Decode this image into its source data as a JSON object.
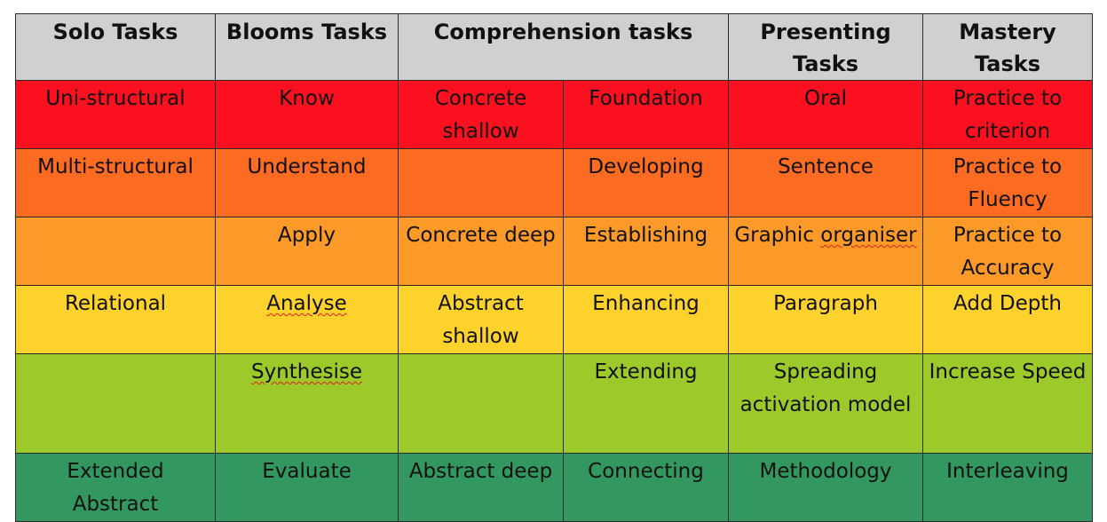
{
  "headers": {
    "solo": "Solo Tasks",
    "blooms": "Blooms Tasks",
    "comprehension": "Comprehension tasks",
    "presenting": "Presenting Tasks",
    "mastery": "Mastery Tasks"
  },
  "row_colors": [
    "#fb1020",
    "#fb6b22",
    "#fb9a28",
    "#fdd22c",
    "#9dc92b",
    "#33985f"
  ],
  "rows": [
    {
      "solo": "Uni-structural",
      "blooms": "Know",
      "comp_a": "Concrete shallow",
      "comp_b": "Foundation",
      "presenting": "Oral",
      "mastery": "Practice to criterion"
    },
    {
      "solo": "Multi-structural",
      "blooms": "Understand",
      "comp_a": "",
      "comp_b": "Developing",
      "presenting": "Sentence",
      "mastery": "Practice to Fluency"
    },
    {
      "solo": "",
      "blooms": "Apply",
      "comp_a": "Concrete deep",
      "comp_b": "Establishing",
      "presenting": "Graphic organiser",
      "mastery": "Practice to Accuracy"
    },
    {
      "solo": "Relational",
      "blooms": "Analyse",
      "comp_a": "Abstract shallow",
      "comp_b": "Enhancing",
      "presenting": "Paragraph",
      "mastery": "Add Depth"
    },
    {
      "solo": "",
      "blooms": "Synthesise",
      "comp_a": "",
      "comp_b": "Extending",
      "presenting": "Spreading activation model",
      "mastery": "Increase Speed"
    },
    {
      "solo": "Extended Abstract",
      "blooms": "Evaluate",
      "comp_a": "Abstract deep",
      "comp_b": "Connecting",
      "presenting": "Methodology",
      "mastery": "Interleaving"
    }
  ]
}
